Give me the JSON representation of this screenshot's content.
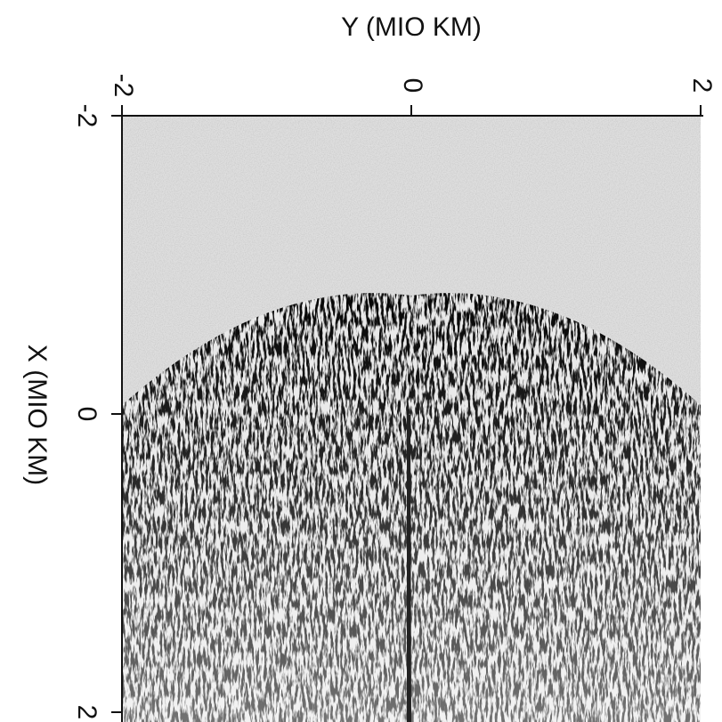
{
  "chart_data": {
    "type": "image",
    "xlabel": "Y (MIO KM)",
    "ylabel": "X (MIO KM)",
    "xlim": [
      -2,
      2
    ],
    "xticks": [
      -2,
      0,
      2
    ],
    "ylim": [
      -2,
      2
    ],
    "yticks": [
      -2,
      0,
      2
    ],
    "y_inverted": true
  }
}
